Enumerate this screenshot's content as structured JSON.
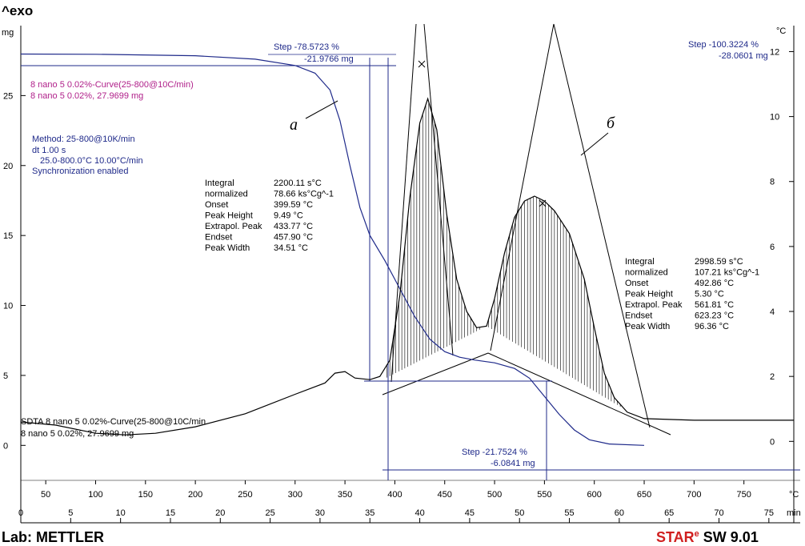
{
  "header": {
    "title": "^exo"
  },
  "footer": {
    "lab": "Lab: METTLER",
    "brand_star": "STAR",
    "brand_e": "e",
    "brand_sw": " SW 9.01"
  },
  "units": {
    "left": "mg",
    "right": "°C",
    "bottom_temp_suffix": "°C",
    "bottom_time_suffix": "min"
  },
  "tga_curve": {
    "line1": "8 nano 5 0.02%-Curve(25-800@10C/min)",
    "line2": "8 nano 5 0.02%, 27.9699 mg"
  },
  "method": {
    "line1": "Method: 25-800@10K/min",
    "line2": "dt 1.00 s",
    "line3": "25.0-800.0°C 10.00°C/min",
    "line4": "Synchronization enabled"
  },
  "sdta_curve": {
    "line1": "SDTA 8 nano 5 0.02%-Curve(25-800@10C/min",
    "line2": "8 nano 5 0.02%, 27.9699 mg"
  },
  "steps": [
    {
      "pct": "Step  -78.5723 %",
      "mg": "-21.9766 mg"
    },
    {
      "pct": "Step  -100.3224 %",
      "mg": "-28.0601 mg"
    },
    {
      "pct": "Step  -21.7524 %",
      "mg": "-6.0841 mg"
    }
  ],
  "peak1": {
    "labels": [
      "Integral",
      "  normalized",
      "Onset",
      "Peak Height",
      "Extrapol. Peak",
      "Endset",
      "Peak Width"
    ],
    "values": [
      "2200.11 s°C",
      "78.66 ks°Cg^-1",
      "399.59 °C",
      "9.49 °C",
      "433.77 °C",
      "457.90 °C",
      "34.51 °C"
    ]
  },
  "peak2": {
    "labels": [
      "Integral",
      "  normalized",
      "Onset",
      "Peak Height",
      "Extrapol. Peak",
      "Endset",
      "Peak Width"
    ],
    "values": [
      "2998.59 s°C",
      "107.21 ks°Cg^-1",
      "492.86 °C",
      "5.30 °C",
      "561.81 °C",
      "623.23 °C",
      "96.36 °C"
    ]
  },
  "annotations": {
    "a": "а",
    "b": "б"
  },
  "chart_data": {
    "type": "line",
    "title": "^exo",
    "x_temp_ticks": [
      50,
      100,
      150,
      200,
      250,
      300,
      350,
      400,
      450,
      500,
      550,
      600,
      650,
      700,
      750
    ],
    "x_time_ticks": [
      0,
      5,
      10,
      15,
      20,
      25,
      30,
      35,
      40,
      45,
      50,
      55,
      60,
      65,
      70,
      75
    ],
    "x_temp_range": [
      25,
      800
    ],
    "y_left_unit": "mg",
    "y_left_ticks": [
      0,
      5,
      10,
      15,
      20,
      25
    ],
    "y_left_range": [
      -2.5,
      30
    ],
    "y_right_unit": "°C",
    "y_right_ticks": [
      0,
      2,
      4,
      6,
      8,
      10,
      12
    ],
    "y_right_range": [
      -1.2,
      12.8
    ],
    "grid": false,
    "series": [
      {
        "name": "8 nano 5 0.02%-Curve(25-800@10C/min)",
        "axis": "left",
        "color": "#1f2a8a",
        "points": [
          [
            25,
            27.97
          ],
          [
            100,
            27.95
          ],
          [
            200,
            27.85
          ],
          [
            260,
            27.6
          ],
          [
            300,
            27.15
          ],
          [
            320,
            26.6
          ],
          [
            335,
            25.4
          ],
          [
            345,
            23.2
          ],
          [
            355,
            20.0
          ],
          [
            365,
            17.0
          ],
          [
            375,
            15.0
          ],
          [
            390,
            13.2
          ],
          [
            405,
            11.2
          ],
          [
            420,
            9.2
          ],
          [
            435,
            7.6
          ],
          [
            450,
            6.7
          ],
          [
            465,
            6.3
          ],
          [
            480,
            6.1
          ],
          [
            500,
            5.9
          ],
          [
            520,
            5.5
          ],
          [
            535,
            4.8
          ],
          [
            550,
            3.5
          ],
          [
            565,
            2.2
          ],
          [
            580,
            1.1
          ],
          [
            595,
            0.4
          ],
          [
            615,
            0.1
          ],
          [
            650,
            0.0
          ]
        ]
      },
      {
        "name": "SDTA 8 nano 5 0.02%-Curve(25-800@10C/min",
        "axis": "right",
        "color": "#000000",
        "points": [
          [
            25,
            0.6
          ],
          [
            60,
            0.5
          ],
          [
            100,
            0.25
          ],
          [
            130,
            0.2
          ],
          [
            160,
            0.25
          ],
          [
            200,
            0.45
          ],
          [
            250,
            0.85
          ],
          [
            300,
            1.45
          ],
          [
            330,
            1.8
          ],
          [
            340,
            2.1
          ],
          [
            350,
            2.15
          ],
          [
            360,
            1.95
          ],
          [
            375,
            1.9
          ],
          [
            385,
            2.0
          ],
          [
            395,
            2.5
          ],
          [
            405,
            4.5
          ],
          [
            415,
            7.5
          ],
          [
            425,
            9.8
          ],
          [
            433,
            10.55
          ],
          [
            442,
            9.6
          ],
          [
            452,
            7.0
          ],
          [
            462,
            5.0
          ],
          [
            472,
            4.0
          ],
          [
            482,
            3.5
          ],
          [
            492,
            3.55
          ],
          [
            500,
            4.4
          ],
          [
            510,
            5.8
          ],
          [
            520,
            6.9
          ],
          [
            530,
            7.4
          ],
          [
            540,
            7.55
          ],
          [
            550,
            7.4
          ],
          [
            560,
            7.1
          ],
          [
            575,
            6.4
          ],
          [
            590,
            5.0
          ],
          [
            600,
            3.5
          ],
          [
            610,
            2.1
          ],
          [
            620,
            1.35
          ],
          [
            633,
            0.9
          ],
          [
            650,
            0.7
          ],
          [
            700,
            0.65
          ],
          [
            800,
            0.65
          ]
        ]
      }
    ]
  }
}
